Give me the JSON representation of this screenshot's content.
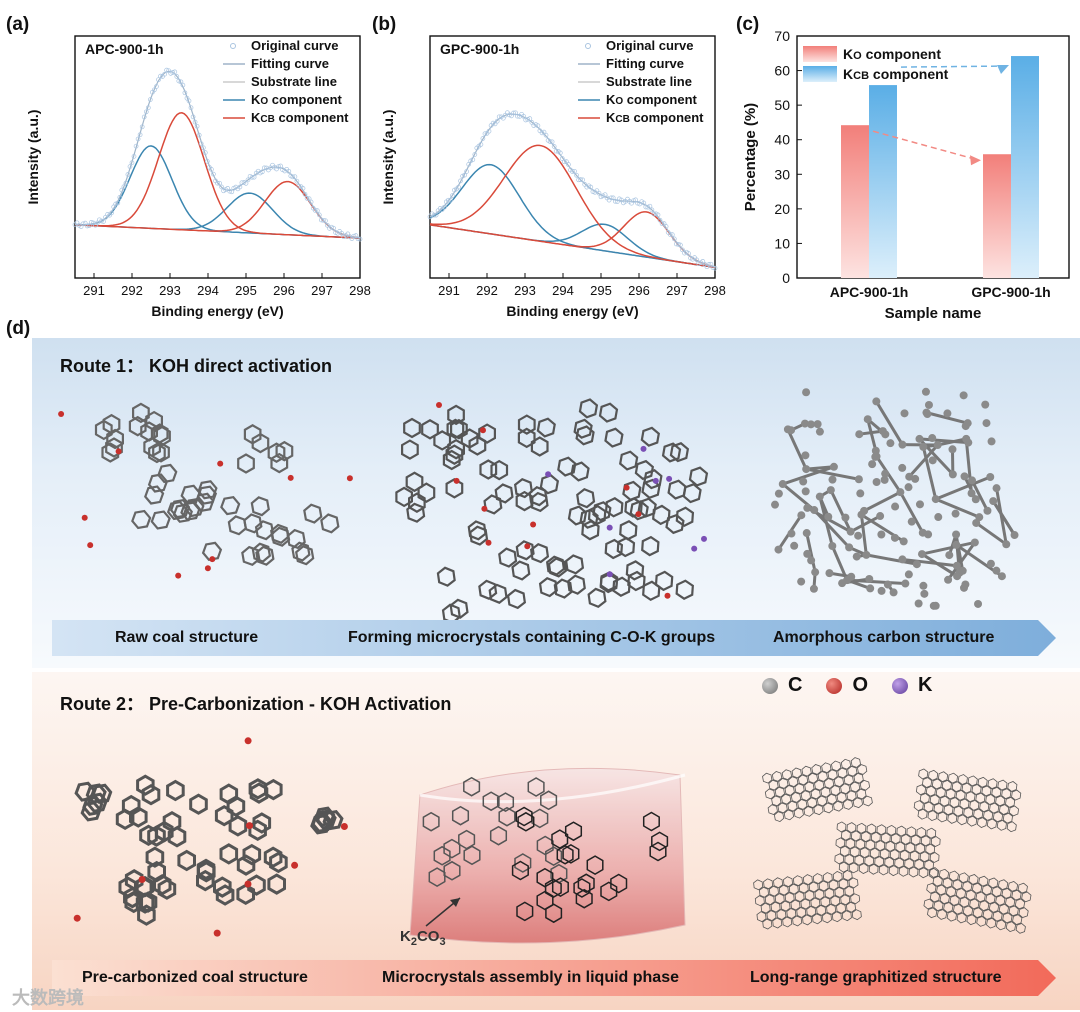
{
  "panel_labels": {
    "a": "(a)",
    "b": "(b)",
    "c": "(c)",
    "d": "(d)"
  },
  "chart_data": [
    {
      "type": "line",
      "panel": "(a)",
      "sample": "APC-900-1h",
      "xlabel": "Binding energy (eV)",
      "ylabel": "Intensity (a.u.)",
      "xlim": [
        290.5,
        298
      ],
      "xticks": [
        291,
        292,
        293,
        294,
        295,
        296,
        297,
        298
      ],
      "legend": [
        "Original curve",
        "Fitting curve",
        "Substrate line",
        "KO component",
        "KCB component"
      ],
      "series": [
        {
          "name": "KO component",
          "color": "#3b86b0",
          "peaks": [
            {
              "center": 292.5,
              "height": 0.62,
              "width": 0.55
            },
            {
              "center": 295.1,
              "height": 0.3,
              "width": 0.6
            }
          ]
        },
        {
          "name": "KCB component",
          "color": "#d94a3a",
          "peaks": [
            {
              "center": 293.3,
              "height": 0.88,
              "width": 0.6
            },
            {
              "center": 296.1,
              "height": 0.4,
              "width": 0.6
            }
          ]
        }
      ],
      "baseline": [
        0.0,
        -0.1
      ]
    },
    {
      "type": "line",
      "panel": "(b)",
      "sample": "GPC-900-1h",
      "xlabel": "Binding energy (eV)",
      "ylabel": "Intensity (a.u.)",
      "xlim": [
        290.5,
        298
      ],
      "xticks": [
        291,
        292,
        293,
        294,
        295,
        296,
        297,
        298
      ],
      "legend": [
        "Original curve",
        "Fitting curve",
        "Substrate line",
        "KO component",
        "KCB component"
      ],
      "series": [
        {
          "name": "KO component",
          "color": "#3b86b0",
          "peaks": [
            {
              "center": 292.1,
              "height": 0.52,
              "width": 0.75
            },
            {
              "center": 295.1,
              "height": 0.2,
              "width": 0.6
            }
          ]
        },
        {
          "name": "KCB component",
          "color": "#d94a3a",
          "peaks": [
            {
              "center": 293.4,
              "height": 0.72,
              "width": 0.95
            },
            {
              "center": 296.2,
              "height": 0.34,
              "width": 0.6
            }
          ]
        }
      ],
      "baseline": [
        0.0,
        -0.32
      ]
    },
    {
      "type": "bar",
      "panel": "(c)",
      "xlabel": "Sample name",
      "ylabel": "Percentage (%)",
      "ylim": [
        0,
        70
      ],
      "yticks": [
        0,
        10,
        20,
        30,
        40,
        50,
        60,
        70
      ],
      "categories": [
        "APC-900-1h",
        "GPC-900-1h"
      ],
      "series": [
        {
          "name": "KO component",
          "color": "#f27f7a",
          "values": [
            44.2,
            35.8
          ]
        },
        {
          "name": "KCB component",
          "color": "#5aaee6",
          "values": [
            55.8,
            64.2
          ]
        }
      ]
    }
  ],
  "legend_text": {
    "original": "Original curve",
    "fitting": "Fitting curve",
    "substrate": "Substrate line",
    "ko_main": "K",
    "ko_sub": "O",
    "ko_rest": " component",
    "kcb_main": "K",
    "kcb_sub": "CB",
    "kcb_rest": " component"
  },
  "route1": {
    "title": "Route 1： KOH direct activation",
    "stages": [
      "Raw coal structure",
      "Forming microcrystals containing C-O-K groups",
      "Amorphous carbon structure"
    ]
  },
  "route2": {
    "title": "Route 2： Pre-Carbonization  - KOH Activation",
    "stages": [
      "Pre-carbonized coal structure",
      "Microcrystals assembly in liquid phase",
      "Long-range graphitized structure"
    ],
    "k2co3_main": "K",
    "k2co3_sub": "2",
    "k2co3_rest": "CO",
    "k2co3_sub2": "3"
  },
  "atoms": [
    {
      "symbol": "C",
      "color": "#8a8a8a"
    },
    {
      "symbol": "O",
      "color": "#c8302c"
    },
    {
      "symbol": "K",
      "color": "#7a4fb5"
    }
  ],
  "watermark": "大数跨境"
}
